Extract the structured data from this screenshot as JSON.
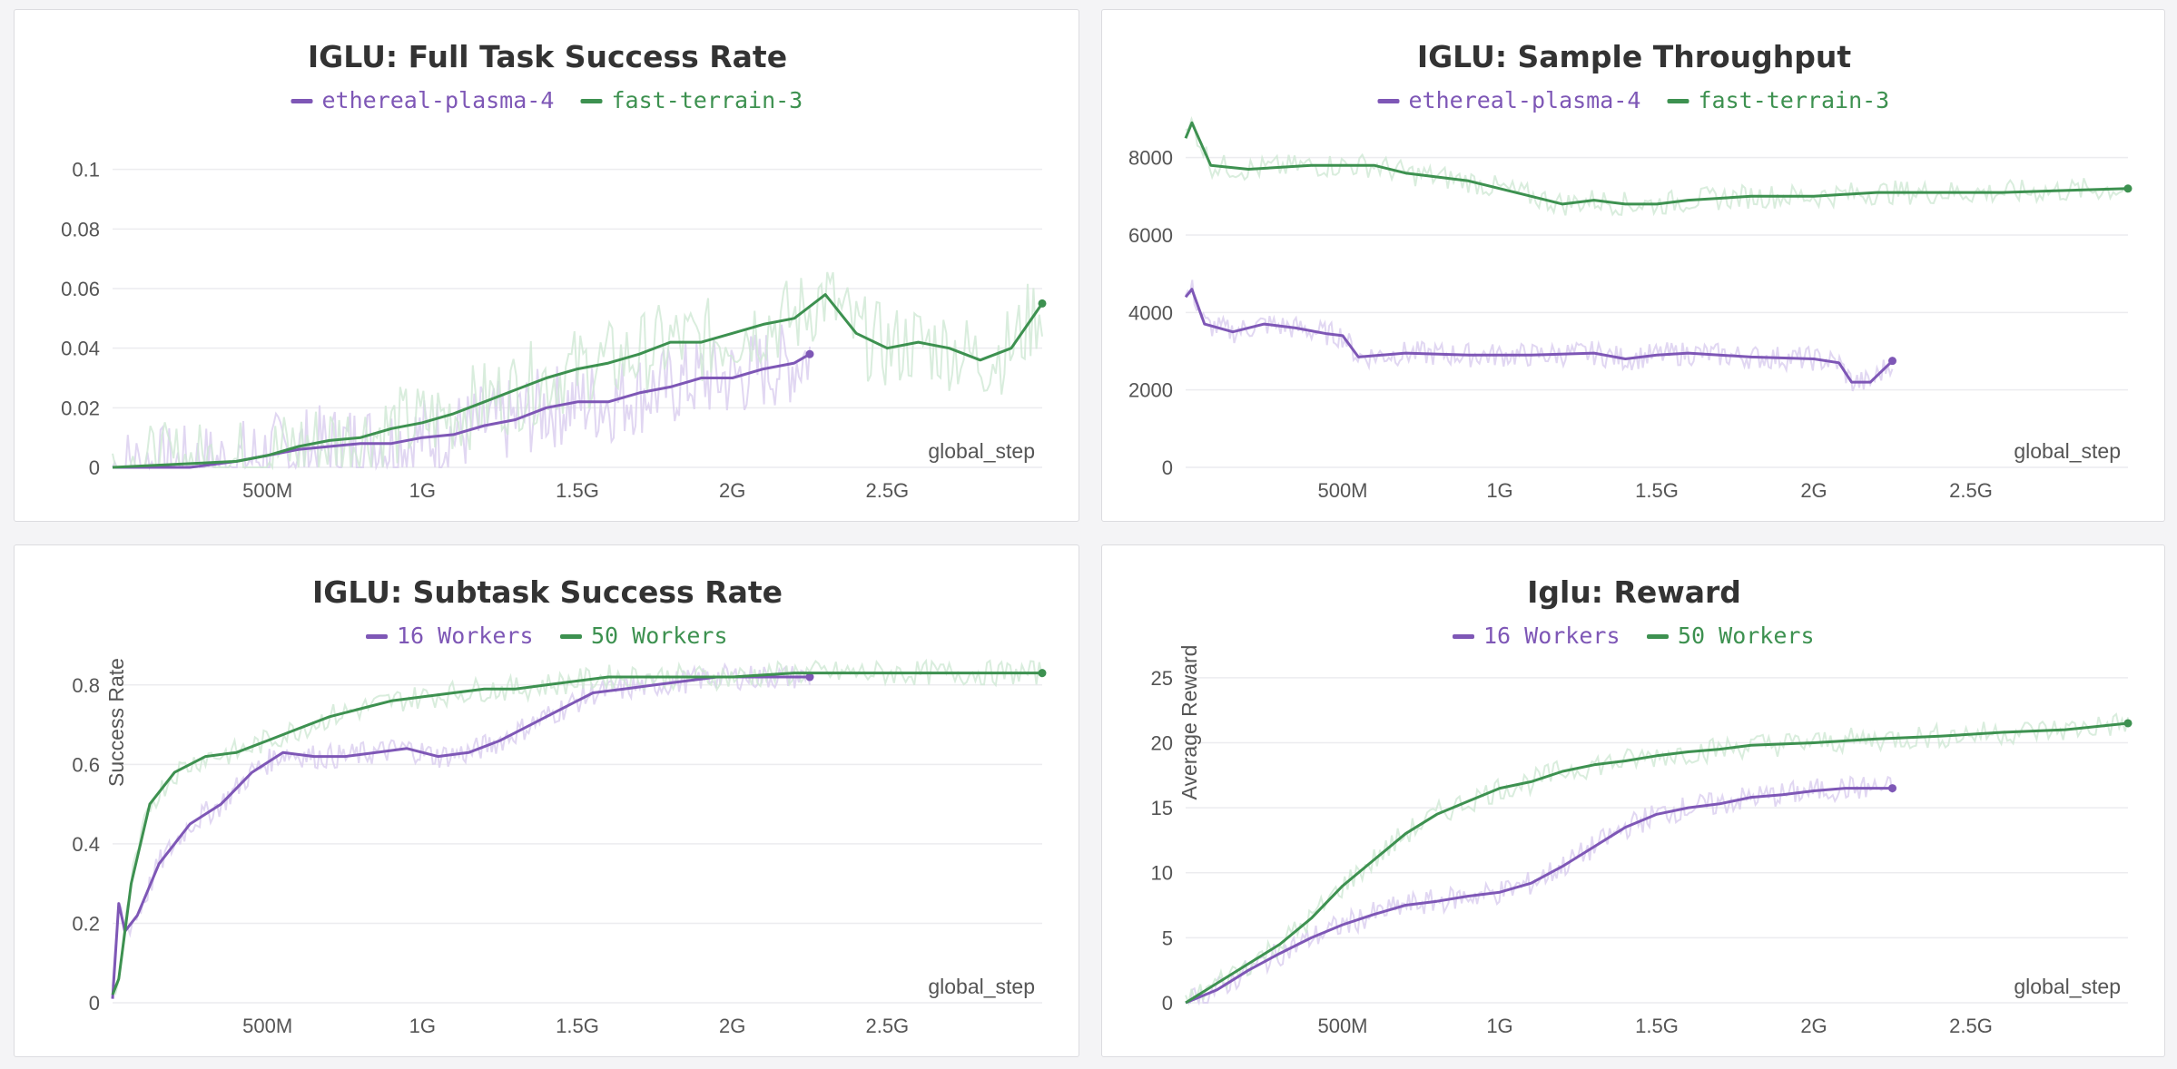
{
  "colors": {
    "series_a": "#7e57b6",
    "series_b": "#3d9150",
    "series_a_light": "#d9cdef",
    "series_b_light": "#cfe8d5"
  },
  "chart_data": [
    {
      "type": "line",
      "title": "IGLU: Full Task Success Rate",
      "xlabel": "global_step",
      "ylabel": "",
      "xlim": [
        0,
        3000000000
      ],
      "ylim": [
        0,
        0.12
      ],
      "yticks": [
        0,
        0.02,
        0.04,
        0.06,
        0.08,
        0.1
      ],
      "ytick_labels": [
        "0",
        "0.02",
        "0.04",
        "0.06",
        "0.08",
        "0.1"
      ],
      "xticks": [
        500000000,
        1000000000,
        1500000000,
        2000000000,
        2500000000
      ],
      "xtick_labels": [
        "500M",
        "1G",
        "1.5G",
        "2G",
        "2.5G"
      ],
      "legend_position": "top-center",
      "series": [
        {
          "name": "ethereal-plasma-4",
          "color": "#7e57b6",
          "x": [
            0,
            250000000,
            400000000,
            500000000,
            600000000,
            700000000,
            800000000,
            900000000,
            1000000000,
            1100000000,
            1200000000,
            1300000000,
            1400000000,
            1500000000,
            1600000000,
            1700000000,
            1800000000,
            1900000000,
            2000000000,
            2100000000,
            2200000000,
            2250000000
          ],
          "y": [
            0,
            0,
            0.002,
            0.004,
            0.006,
            0.007,
            0.008,
            0.008,
            0.01,
            0.011,
            0.014,
            0.016,
            0.02,
            0.022,
            0.022,
            0.025,
            0.027,
            0.03,
            0.03,
            0.033,
            0.035,
            0.038
          ]
        },
        {
          "name": "fast-terrain-3",
          "color": "#3d9150",
          "x": [
            0,
            400000000,
            500000000,
            600000000,
            700000000,
            800000000,
            900000000,
            1000000000,
            1100000000,
            1200000000,
            1300000000,
            1400000000,
            1500000000,
            1600000000,
            1700000000,
            1800000000,
            1900000000,
            2000000000,
            2100000000,
            2200000000,
            2300000000,
            2400000000,
            2500000000,
            2600000000,
            2700000000,
            2800000000,
            2900000000,
            3000000000
          ],
          "y": [
            0,
            0.002,
            0.004,
            0.007,
            0.009,
            0.01,
            0.013,
            0.015,
            0.018,
            0.022,
            0.026,
            0.03,
            0.033,
            0.035,
            0.038,
            0.042,
            0.042,
            0.045,
            0.048,
            0.05,
            0.058,
            0.045,
            0.04,
            0.042,
            0.04,
            0.036,
            0.04,
            0.055
          ]
        }
      ]
    },
    {
      "type": "line",
      "title": "IGLU: Sample Throughput",
      "xlabel": "global_step",
      "ylabel": "",
      "xlim": [
        0,
        3000000000
      ],
      "ylim": [
        0,
        9000
      ],
      "yticks": [
        0,
        2000,
        4000,
        6000,
        8000
      ],
      "ytick_labels": [
        "0",
        "2000",
        "4000",
        "6000",
        "8000"
      ],
      "xticks": [
        500000000,
        1000000000,
        1500000000,
        2000000000,
        2500000000
      ],
      "xtick_labels": [
        "500M",
        "1G",
        "1.5G",
        "2G",
        "2.5G"
      ],
      "legend_position": "top-center",
      "series": [
        {
          "name": "ethereal-plasma-4",
          "color": "#7e57b6",
          "x": [
            0,
            20000000,
            60000000,
            150000000,
            250000000,
            350000000,
            450000000,
            500000000,
            550000000,
            700000000,
            900000000,
            1100000000,
            1300000000,
            1400000000,
            1500000000,
            1600000000,
            1800000000,
            2000000000,
            2080000000,
            2120000000,
            2180000000,
            2250000000
          ],
          "y": [
            4400,
            4600,
            3700,
            3500,
            3700,
            3600,
            3450,
            3400,
            2850,
            2950,
            2900,
            2900,
            2950,
            2800,
            2900,
            2950,
            2850,
            2800,
            2700,
            2200,
            2200,
            2750
          ]
        },
        {
          "name": "fast-terrain-3",
          "color": "#3d9150",
          "x": [
            0,
            20000000,
            80000000,
            200000000,
            400000000,
            600000000,
            700000000,
            800000000,
            900000000,
            1000000000,
            1100000000,
            1200000000,
            1300000000,
            1400000000,
            1500000000,
            1600000000,
            1800000000,
            2000000000,
            2200000000,
            2400000000,
            2600000000,
            2800000000,
            3000000000
          ],
          "y": [
            8500,
            8900,
            7800,
            7700,
            7800,
            7800,
            7600,
            7500,
            7400,
            7200,
            7000,
            6800,
            6900,
            6800,
            6800,
            6900,
            7000,
            7000,
            7100,
            7100,
            7100,
            7150,
            7200
          ]
        }
      ]
    },
    {
      "type": "line",
      "title": "IGLU: Subtask Success Rate",
      "xlabel": "global_step",
      "ylabel": "Success Rate",
      "xlim": [
        0,
        3000000000
      ],
      "ylim": [
        0,
        0.9
      ],
      "yticks": [
        0,
        0.2,
        0.4,
        0.6,
        0.8
      ],
      "ytick_labels": [
        "0",
        "0.2",
        "0.4",
        "0.6",
        "0.8"
      ],
      "xticks": [
        500000000,
        1000000000,
        1500000000,
        2000000000,
        2500000000
      ],
      "xtick_labels": [
        "500M",
        "1G",
        "1.5G",
        "2G",
        "2.5G"
      ],
      "legend_position": "top-center",
      "series": [
        {
          "name": "16 Workers",
          "color": "#7e57b6",
          "x": [
            0,
            20000000,
            40000000,
            80000000,
            150000000,
            250000000,
            350000000,
            450000000,
            550000000,
            650000000,
            750000000,
            850000000,
            950000000,
            1050000000,
            1150000000,
            1250000000,
            1350000000,
            1450000000,
            1550000000,
            1650000000,
            1750000000,
            1850000000,
            1950000000,
            2050000000,
            2150000000,
            2250000000
          ],
          "y": [
            0.01,
            0.25,
            0.18,
            0.22,
            0.35,
            0.45,
            0.5,
            0.58,
            0.63,
            0.62,
            0.62,
            0.63,
            0.64,
            0.62,
            0.63,
            0.66,
            0.7,
            0.74,
            0.78,
            0.79,
            0.8,
            0.81,
            0.82,
            0.82,
            0.82,
            0.82
          ]
        },
        {
          "name": "50 Workers",
          "color": "#3d9150",
          "x": [
            0,
            20000000,
            60000000,
            120000000,
            200000000,
            300000000,
            400000000,
            500000000,
            600000000,
            700000000,
            800000000,
            900000000,
            1000000000,
            1100000000,
            1200000000,
            1300000000,
            1400000000,
            1500000000,
            1600000000,
            1800000000,
            2000000000,
            2200000000,
            2400000000,
            2600000000,
            2800000000,
            3000000000
          ],
          "y": [
            0.02,
            0.06,
            0.3,
            0.5,
            0.58,
            0.62,
            0.63,
            0.66,
            0.69,
            0.72,
            0.74,
            0.76,
            0.77,
            0.78,
            0.79,
            0.79,
            0.8,
            0.81,
            0.82,
            0.82,
            0.82,
            0.83,
            0.83,
            0.83,
            0.83,
            0.83
          ]
        }
      ]
    },
    {
      "type": "line",
      "title": "Iglu: Reward",
      "xlabel": "global_step",
      "ylabel": "Average Reward",
      "xlim": [
        0,
        3000000000
      ],
      "ylim": [
        0,
        27.5
      ],
      "yticks": [
        0,
        5,
        10,
        15,
        20,
        25
      ],
      "ytick_labels": [
        "0",
        "5",
        "10",
        "15",
        "20",
        "25"
      ],
      "xticks": [
        500000000,
        1000000000,
        1500000000,
        2000000000,
        2500000000
      ],
      "xtick_labels": [
        "500M",
        "1G",
        "1.5G",
        "2G",
        "2.5G"
      ],
      "legend_position": "top-center",
      "series": [
        {
          "name": "16 Workers",
          "color": "#7e57b6",
          "x": [
            0,
            100000000,
            200000000,
            300000000,
            400000000,
            500000000,
            600000000,
            700000000,
            800000000,
            900000000,
            1000000000,
            1100000000,
            1200000000,
            1300000000,
            1400000000,
            1500000000,
            1600000000,
            1700000000,
            1800000000,
            1900000000,
            2000000000,
            2100000000,
            2250000000
          ],
          "y": [
            0,
            1,
            2.5,
            3.8,
            5,
            6,
            6.8,
            7.5,
            7.8,
            8.2,
            8.5,
            9.2,
            10.5,
            12,
            13.5,
            14.5,
            15,
            15.3,
            15.8,
            16,
            16.3,
            16.5,
            16.5
          ]
        },
        {
          "name": "50 Workers",
          "color": "#3d9150",
          "x": [
            0,
            100000000,
            200000000,
            300000000,
            400000000,
            500000000,
            600000000,
            700000000,
            800000000,
            900000000,
            1000000000,
            1100000000,
            1200000000,
            1300000000,
            1400000000,
            1500000000,
            1600000000,
            1700000000,
            1800000000,
            2000000000,
            2200000000,
            2400000000,
            2600000000,
            2800000000,
            3000000000
          ],
          "y": [
            0,
            1.5,
            3,
            4.5,
            6.5,
            9,
            11,
            13,
            14.5,
            15.5,
            16.5,
            17,
            17.8,
            18.3,
            18.6,
            19,
            19.3,
            19.5,
            19.8,
            20,
            20.3,
            20.5,
            20.8,
            21,
            21.5
          ]
        }
      ]
    }
  ]
}
